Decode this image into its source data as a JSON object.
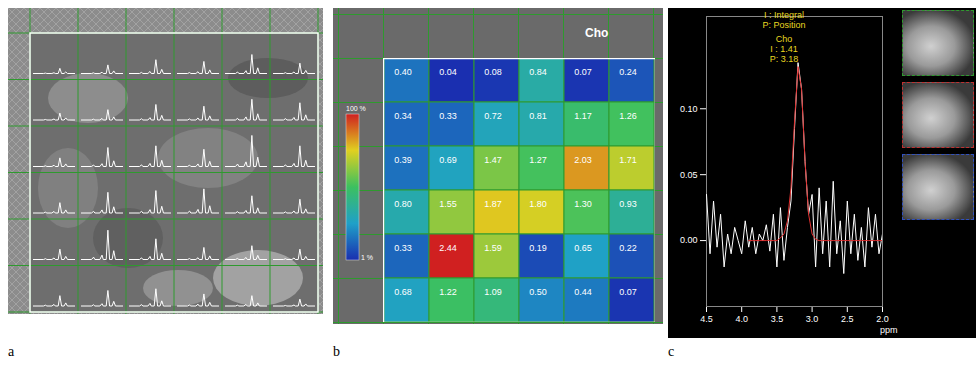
{
  "chart_data": [
    {
      "type": "spectra_grid",
      "title": "a",
      "color": "#ffffff",
      "tick_labels": false,
      "peak_heights": [
        [
          0.15,
          0.25,
          0.4,
          0.35,
          0.55,
          0.3
        ],
        [
          0.2,
          0.3,
          0.45,
          0.4,
          0.6,
          0.5
        ],
        [
          0.25,
          0.55,
          0.6,
          0.5,
          0.9,
          0.6
        ],
        [
          0.3,
          0.6,
          0.65,
          0.7,
          0.5,
          0.4
        ],
        [
          0.3,
          0.85,
          0.6,
          0.35,
          0.4,
          0.3
        ],
        [
          0.3,
          0.45,
          0.5,
          0.35,
          0.3,
          0.2
        ]
      ]
    },
    {
      "type": "heatmap",
      "title": "b",
      "annotations": [
        "Cho"
      ],
      "tick_labels": false,
      "values": [
        [
          0.4,
          0.04,
          0.08,
          0.84,
          0.07,
          0.24
        ],
        [
          0.34,
          0.33,
          0.72,
          0.81,
          1.17,
          1.26
        ],
        [
          0.39,
          0.69,
          1.47,
          1.27,
          2.03,
          1.71
        ],
        [
          0.8,
          1.55,
          1.87,
          1.8,
          1.3,
          0.93
        ],
        [
          0.33,
          2.44,
          1.59,
          0.19,
          0.65,
          0.22
        ],
        [
          0.68,
          1.22,
          1.09,
          0.5,
          0.44,
          0.07
        ]
      ],
      "value_labels": [
        [
          "0.40",
          "0.04",
          "0.08",
          "0.84",
          "0.07",
          "0.24"
        ],
        [
          "0.34",
          "0.33",
          "0.72",
          "0.81",
          "1.17",
          "1.26"
        ],
        [
          "0.39",
          "0.69",
          "1.47",
          "1.27",
          "2.03",
          "1.71"
        ],
        [
          "0.80",
          "1.55",
          "1.87",
          "1.80",
          "1.30",
          "0.93"
        ],
        [
          "0.33",
          "2.44",
          "1.59",
          "0.19",
          "0.65",
          "0.22"
        ],
        [
          "0.68",
          "1.22",
          "1.09",
          "0.50",
          "0.44",
          "0.07"
        ]
      ],
      "colors": [
        "#1a2fb0",
        "#1fa0c8",
        "#3cc060",
        "#e0d020",
        "#d02020"
      ],
      "colorbar": {
        "range": [
          1,
          100
        ],
        "ticks": [
          {
            "value": 100,
            "label": "100 %"
          },
          {
            "value": 1,
            "label": "1 %"
          }
        ]
      }
    },
    {
      "type": "line",
      "title": "c",
      "annotations": [
        "I : Integral",
        "P: Position",
        "Cho",
        "I : 1.41",
        "P: 3.18"
      ],
      "xlabel": "ppm",
      "x": [
        4.5,
        4.45,
        4.4,
        4.35,
        4.3,
        4.25,
        4.2,
        4.15,
        4.1,
        4.05,
        4.0,
        3.95,
        3.9,
        3.85,
        3.8,
        3.75,
        3.7,
        3.65,
        3.6,
        3.55,
        3.5,
        3.45,
        3.4,
        3.35,
        3.3,
        3.25,
        3.2,
        3.15,
        3.1,
        3.05,
        3.0,
        2.95,
        2.9,
        2.85,
        2.8,
        2.75,
        2.7,
        2.65,
        2.6,
        2.55,
        2.5,
        2.45,
        2.4,
        2.35,
        2.3,
        2.25,
        2.2,
        2.15,
        2.1,
        2.05,
        2.0
      ],
      "series": [
        {
          "color": "#ffffff",
          "values": [
            0.035,
            -0.01,
            0.03,
            -0.005,
            0.02,
            -0.02,
            0.005,
            -0.01,
            0.01,
            0.0,
            -0.01,
            0.015,
            -0.005,
            0.01,
            -0.01,
            0.005,
            0.0,
            0.012,
            -0.008,
            0.02,
            -0.02,
            0.025,
            -0.015,
            0.01,
            0.03,
            0.085,
            0.135,
            0.115,
            0.06,
            0.02,
            0.035,
            -0.02,
            0.04,
            -0.01,
            0.03,
            -0.02,
            0.045,
            -0.01,
            0.015,
            -0.025,
            0.03,
            -0.01,
            0.02,
            -0.015,
            0.01,
            -0.02,
            0.025,
            -0.005,
            0.02,
            -0.01,
            0.005
          ]
        },
        {
          "color": "#e03030",
          "values": [
            null,
            null,
            null,
            null,
            null,
            null,
            null,
            null,
            null,
            null,
            null,
            null,
            0.0,
            0.0,
            0.0,
            0.0,
            0.0,
            0.0,
            0.0,
            0.0,
            0.0,
            0.002,
            0.005,
            0.015,
            0.04,
            0.09,
            0.132,
            0.115,
            0.06,
            0.02,
            0.005,
            0.001,
            0.0,
            0.0,
            0.0,
            0.0,
            0.0,
            0.0,
            0.0,
            0.0,
            0.0,
            0.0,
            0.0,
            0.0,
            0.0,
            0.0,
            0.0,
            0.0,
            0.0,
            0.0,
            0.0
          ]
        }
      ],
      "xlim": [
        4.5,
        2.0
      ],
      "xticks": [
        {
          "value": 4.5,
          "label": "4.5"
        },
        {
          "value": 4.0,
          "label": "4.0"
        },
        {
          "value": 3.5,
          "label": "3.5"
        },
        {
          "value": 3.0,
          "label": "3.0"
        },
        {
          "value": 2.5,
          "label": "2.5"
        },
        {
          "value": 2.0,
          "label": "2.0"
        }
      ],
      "ylim": [
        -0.05,
        0.17
      ],
      "yticks": [
        {
          "value": 0,
          "label": "0.00"
        },
        {
          "value": 0.05,
          "label": "0.05"
        },
        {
          "value": 0.1,
          "label": "0.10"
        }
      ]
    }
  ]
}
